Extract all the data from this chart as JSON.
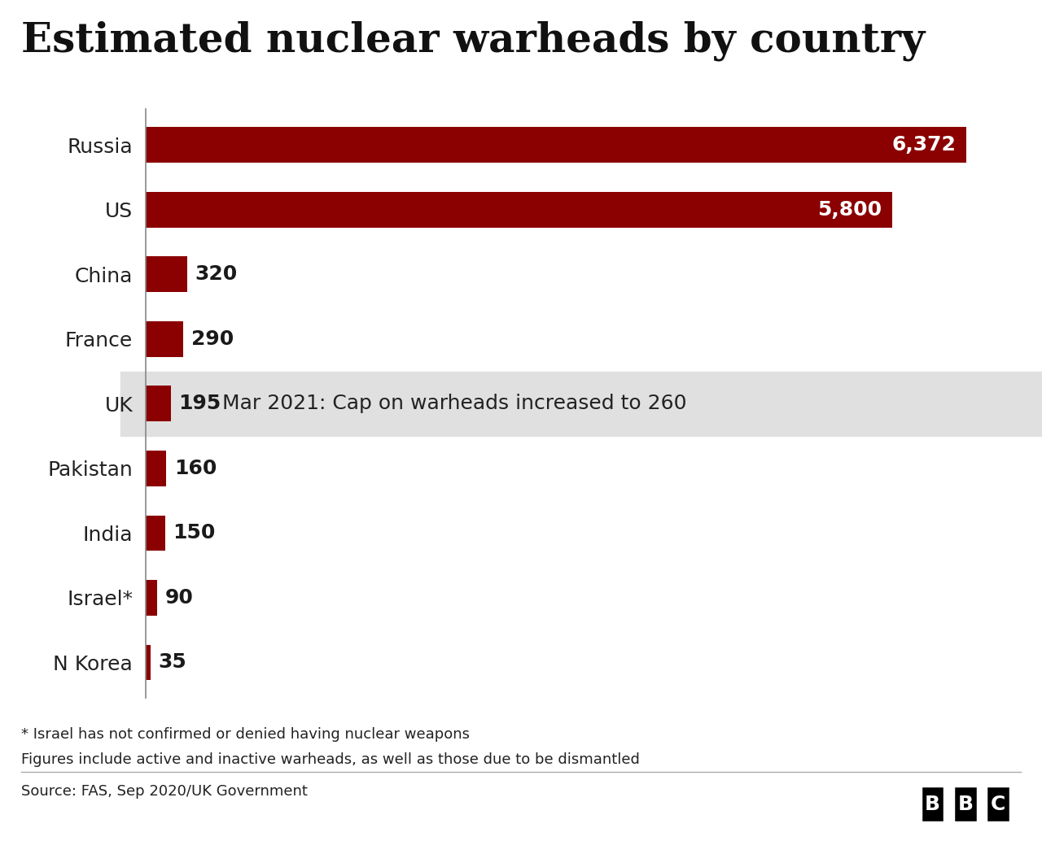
{
  "title": "Estimated nuclear warheads by country",
  "countries": [
    "Russia",
    "US",
    "China",
    "France",
    "UK",
    "Pakistan",
    "India",
    "Israel*",
    "N Korea"
  ],
  "values": [
    6372,
    5800,
    320,
    290,
    195,
    160,
    150,
    90,
    35
  ],
  "bar_color": "#8B0000",
  "highlight_row": 4,
  "highlight_bg": "#E0E0E0",
  "annotation_text": "Mar 2021: Cap on warheads increased to 260",
  "annotation_fontsize": 18,
  "value_fontsize": 18,
  "title_fontsize": 36,
  "country_fontsize": 18,
  "footnote1": "* Israel has not confirmed or denied having nuclear weapons",
  "footnote2": "Figures include active and inactive warheads, as well as those due to be dismantled",
  "source_text": "Source: FAS, Sep 2020/UK Government",
  "bbc_text": "BBC",
  "bg_color": "#FFFFFF",
  "max_value": 6800,
  "value_label_color_dark": "#1a1a1a",
  "value_label_color_light": "#FFFFFF"
}
